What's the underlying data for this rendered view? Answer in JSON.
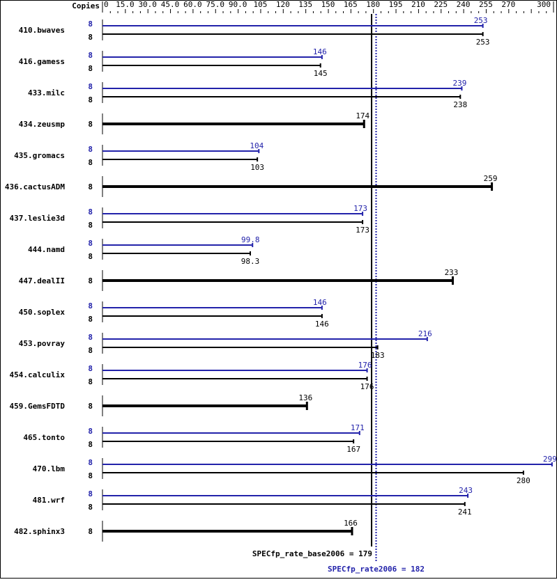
{
  "chart_data": {
    "type": "bar",
    "orientation": "horizontal",
    "axis_header": "Copies",
    "xlim": [
      0,
      300
    ],
    "x_ticks": [
      "0",
      "15.0",
      "30.0",
      "45.0",
      "60.0",
      "75.0",
      "90.0",
      "105",
      "120",
      "135",
      "150",
      "165",
      "180",
      "195",
      "210",
      "225",
      "240",
      "255",
      "270",
      "300"
    ],
    "x_tick_values": [
      0,
      15,
      30,
      45,
      60,
      75,
      90,
      105,
      120,
      135,
      150,
      165,
      180,
      195,
      210,
      225,
      240,
      255,
      270,
      300
    ],
    "minor_tick_step": 5,
    "colors": {
      "base": "#000000",
      "peak": "#2222aa"
    },
    "benchmarks": [
      {
        "name": "410.bwaves",
        "peak_copies": "8",
        "base_copies": "8",
        "peak": 253,
        "base": 253,
        "peak_label": "253",
        "base_label": "253"
      },
      {
        "name": "416.gamess",
        "peak_copies": "8",
        "base_copies": "8",
        "peak": 146,
        "base": 145,
        "peak_label": "146",
        "base_label": "145"
      },
      {
        "name": "433.milc",
        "peak_copies": "8",
        "base_copies": "8",
        "peak": 239,
        "base": 238,
        "peak_label": "239",
        "base_label": "238"
      },
      {
        "name": "434.zeusmp",
        "base_copies": "8",
        "base": 174,
        "base_label": "174"
      },
      {
        "name": "435.gromacs",
        "peak_copies": "8",
        "base_copies": "8",
        "peak": 104,
        "base": 103,
        "peak_label": "104",
        "base_label": "103"
      },
      {
        "name": "436.cactusADM",
        "base_copies": "8",
        "base": 259,
        "base_label": "259"
      },
      {
        "name": "437.leslie3d",
        "peak_copies": "8",
        "base_copies": "8",
        "peak": 173,
        "base": 173,
        "peak_label": "173",
        "base_label": "173"
      },
      {
        "name": "444.namd",
        "peak_copies": "8",
        "base_copies": "8",
        "peak": 99.8,
        "base": 98.3,
        "peak_label": "99.8",
        "base_label": "98.3"
      },
      {
        "name": "447.dealII",
        "base_copies": "8",
        "base": 233,
        "base_label": "233"
      },
      {
        "name": "450.soplex",
        "peak_copies": "8",
        "base_copies": "8",
        "peak": 146,
        "base": 146,
        "peak_label": "146",
        "base_label": "146"
      },
      {
        "name": "453.povray",
        "peak_copies": "8",
        "base_copies": "8",
        "peak": 216,
        "base": 183,
        "peak_label": "216",
        "base_label": "183"
      },
      {
        "name": "454.calculix",
        "peak_copies": "8",
        "base_copies": "8",
        "peak": 176,
        "base": 176,
        "peak_label": "176",
        "base_label": "176"
      },
      {
        "name": "459.GemsFDTD",
        "base_copies": "8",
        "base": 136,
        "base_label": "136"
      },
      {
        "name": "465.tonto",
        "peak_copies": "8",
        "base_copies": "8",
        "peak": 171,
        "base": 167,
        "peak_label": "171",
        "base_label": "167"
      },
      {
        "name": "470.lbm",
        "peak_copies": "8",
        "base_copies": "8",
        "peak": 299,
        "base": 280,
        "peak_label": "299",
        "base_label": "280"
      },
      {
        "name": "481.wrf",
        "peak_copies": "8",
        "base_copies": "8",
        "peak": 243,
        "base": 241,
        "peak_label": "243",
        "base_label": "241"
      },
      {
        "name": "482.sphinx3",
        "base_copies": "8",
        "base": 166,
        "base_label": "166"
      }
    ],
    "summary": {
      "base_label": "SPECfp_rate_base2006 = 179",
      "base_value": 179,
      "peak_label": "SPECfp_rate2006 = 182",
      "peak_value": 182
    }
  }
}
